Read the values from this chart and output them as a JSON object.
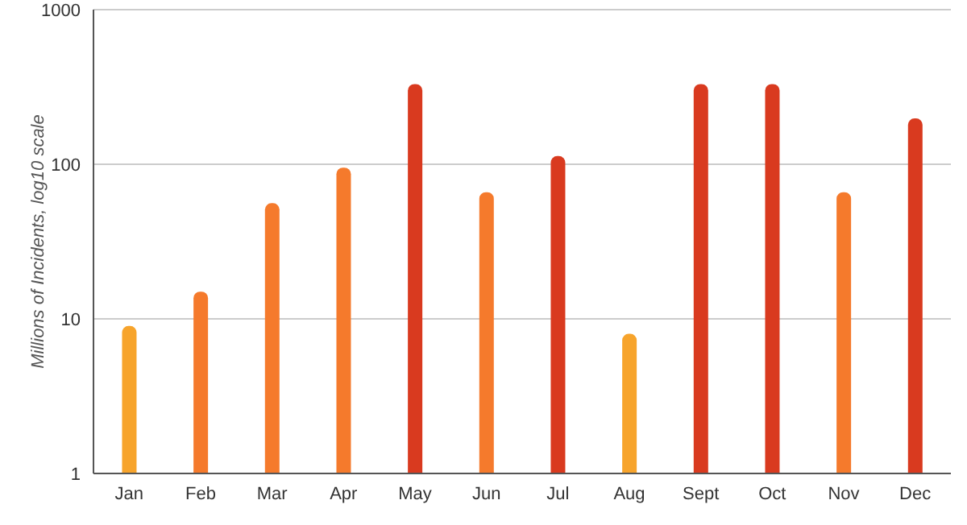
{
  "chart_data": {
    "type": "bar",
    "ylabel": "Millions of Incidents, log10 scale",
    "categories": [
      "Jan",
      "Feb",
      "Mar",
      "Apr",
      "May",
      "Jun",
      "Jul",
      "Aug",
      "Sept",
      "Oct",
      "Nov",
      "Dec"
    ],
    "values": [
      9,
      15,
      56,
      95,
      330,
      66,
      113,
      8,
      330,
      330,
      66,
      198
    ],
    "colors": [
      "#f7a42c",
      "#f57a2c",
      "#f57a2c",
      "#f57a2c",
      "#d93a1f",
      "#f57a2c",
      "#d93a1f",
      "#f7a42c",
      "#d93a1f",
      "#d93a1f",
      "#f57a2c",
      "#d93a1f"
    ],
    "log": true,
    "ylim": [
      1,
      1000
    ],
    "yticks": [
      1,
      10,
      100,
      1000
    ],
    "grid": "y"
  }
}
